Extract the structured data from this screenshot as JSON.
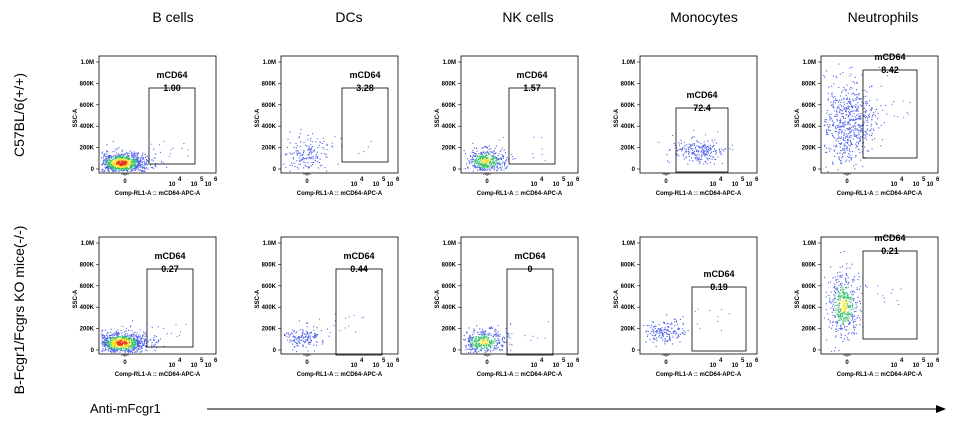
{
  "columns": [
    "B cells",
    "DCs",
    "NK cells",
    "Monocytes",
    "Neutrophils"
  ],
  "rows": [
    "C57BL/6(+/+)",
    "B-Fcgr1/Fcgrs KO mice(-/-)"
  ],
  "axis_caption": "Anti-mFcgr1",
  "colors": {
    "density_low": "#4a5ee8",
    "density_mid": "#2fbf6a",
    "density_high": "#f7e21a",
    "density_peak": "#e8341c",
    "axis": "#000000",
    "gate": "#000000"
  },
  "chart_data": [
    {
      "type": "scatter",
      "cell_type": "B cells",
      "genotype": "C57BL/6(+/+)",
      "xlabel": "Comp-RL1-A :: mCD64-APC-A",
      "ylabel": "SSC-A",
      "x_ticks": [
        "0",
        "10",
        "4",
        "10",
        "5",
        "10",
        "6"
      ],
      "y_ticks": [
        "0",
        "200K",
        "400K",
        "600K",
        "800K",
        "1.0M"
      ],
      "gate_name": "mCD64",
      "gate_percent": "1.00",
      "ylim": [
        0,
        1000000
      ],
      "density": "high",
      "population_center_ssc": 60000
    },
    {
      "type": "scatter",
      "cell_type": "DCs",
      "genotype": "C57BL/6(+/+)",
      "xlabel": "Comp-RL1-A :: mCD64-APC-A",
      "ylabel": "SSC-A",
      "x_ticks": [
        "0",
        "10",
        "4",
        "10",
        "5",
        "10",
        "6"
      ],
      "y_ticks": [
        "0",
        "200K",
        "400K",
        "600K",
        "800K",
        "1.0M"
      ],
      "gate_name": "mCD64",
      "gate_percent": "3.28",
      "ylim": [
        0,
        1000000
      ],
      "density": "low",
      "population_center_ssc": 140000
    },
    {
      "type": "scatter",
      "cell_type": "NK cells",
      "genotype": "C57BL/6(+/+)",
      "xlabel": "Comp-RL1-A :: mCD64-APC-A",
      "ylabel": "SSC-A",
      "x_ticks": [
        "0",
        "10",
        "4",
        "10",
        "5",
        "10",
        "6"
      ],
      "y_ticks": [
        "0",
        "200K",
        "400K",
        "600K",
        "800K",
        "1.0M"
      ],
      "gate_name": "mCD64",
      "gate_percent": "1.57",
      "ylim": [
        0,
        1000000
      ],
      "density": "medium",
      "population_center_ssc": 80000
    },
    {
      "type": "scatter",
      "cell_type": "Monocytes",
      "genotype": "C57BL/6(+/+)",
      "xlabel": "Comp-RL1-A :: mCD64-APC-A",
      "ylabel": "SSC-A",
      "x_ticks": [
        "0",
        "10",
        "4",
        "10",
        "5",
        "10",
        "6"
      ],
      "y_ticks": [
        "0",
        "200K",
        "400K",
        "600K",
        "800K",
        "1.0M"
      ],
      "gate_name": "mCD64",
      "gate_percent": "72.4",
      "ylim": [
        0,
        1000000
      ],
      "density": "low",
      "population_center_ssc": 170000
    },
    {
      "type": "scatter",
      "cell_type": "Neutrophils",
      "genotype": "C57BL/6(+/+)",
      "xlabel": "Comp-RL1-A :: mCD64-APC-A",
      "ylabel": "SSC-A",
      "x_ticks": [
        "0",
        "10",
        "4",
        "10",
        "5",
        "10",
        "6"
      ],
      "y_ticks": [
        "0",
        "200K",
        "400K",
        "600K",
        "800K",
        "1.0M"
      ],
      "gate_name": "mCD64",
      "gate_percent": "8.42",
      "ylim": [
        0,
        1000000
      ],
      "density": "low",
      "population_center_ssc": 430000
    },
    {
      "type": "scatter",
      "cell_type": "B cells",
      "genotype": "B-Fcgr1/Fcgrs KO mice(-/-)",
      "xlabel": "Comp-RL1-A :: mCD64-APC-A",
      "ylabel": "SSC-A",
      "x_ticks": [
        "0",
        "10",
        "4",
        "10",
        "5",
        "10",
        "6"
      ],
      "y_ticks": [
        "0",
        "200K",
        "400K",
        "600K",
        "800K",
        "1.0M"
      ],
      "gate_name": "mCD64",
      "gate_percent": "0.27",
      "ylim": [
        0,
        1000000
      ],
      "density": "high",
      "population_center_ssc": 70000
    },
    {
      "type": "scatter",
      "cell_type": "DCs",
      "genotype": "B-Fcgr1/Fcgrs KO mice(-/-)",
      "xlabel": "Comp-RL1-A :: mCD64-APC-A",
      "ylabel": "SSC-A",
      "x_ticks": [
        "0",
        "10",
        "4",
        "10",
        "5",
        "10",
        "6"
      ],
      "y_ticks": [
        "0",
        "200K",
        "400K",
        "600K",
        "800K",
        "1.0M"
      ],
      "gate_name": "mCD64",
      "gate_percent": "0.44",
      "ylim": [
        0,
        1000000
      ],
      "density": "low",
      "population_center_ssc": 120000
    },
    {
      "type": "scatter",
      "cell_type": "NK cells",
      "genotype": "B-Fcgr1/Fcgrs KO mice(-/-)",
      "xlabel": "Comp-RL1-A :: mCD64-APC-A",
      "ylabel": "SSC-A",
      "x_ticks": [
        "0",
        "10",
        "4",
        "10",
        "5",
        "10",
        "6"
      ],
      "y_ticks": [
        "0",
        "200K",
        "400K",
        "600K",
        "800K",
        "1.0M"
      ],
      "gate_name": "mCD64",
      "gate_percent": "0",
      "ylim": [
        0,
        1000000
      ],
      "density": "medium",
      "population_center_ssc": 80000
    },
    {
      "type": "scatter",
      "cell_type": "Monocytes",
      "genotype": "B-Fcgr1/Fcgrs KO mice(-/-)",
      "xlabel": "Comp-RL1-A :: mCD64-APC-A",
      "ylabel": "SSC-A",
      "x_ticks": [
        "0",
        "10",
        "4",
        "10",
        "5",
        "10",
        "6"
      ],
      "y_ticks": [
        "0",
        "200K",
        "400K",
        "600K",
        "800K",
        "1.0M"
      ],
      "gate_name": "mCD64",
      "gate_percent": "0.19",
      "ylim": [
        0,
        1000000
      ],
      "density": "low",
      "population_center_ssc": 170000
    },
    {
      "type": "scatter",
      "cell_type": "Neutrophils",
      "genotype": "B-Fcgr1/Fcgrs KO mice(-/-)",
      "xlabel": "Comp-RL1-A :: mCD64-APC-A",
      "ylabel": "SSC-A",
      "x_ticks": [
        "0",
        "10",
        "4",
        "10",
        "5",
        "10",
        "6"
      ],
      "y_ticks": [
        "0",
        "200K",
        "400K",
        "600K",
        "800K",
        "1.0M"
      ],
      "gate_name": "mCD64",
      "gate_percent": "0.21",
      "ylim": [
        0,
        1000000
      ],
      "density": "medium",
      "population_center_ssc": 420000
    }
  ]
}
